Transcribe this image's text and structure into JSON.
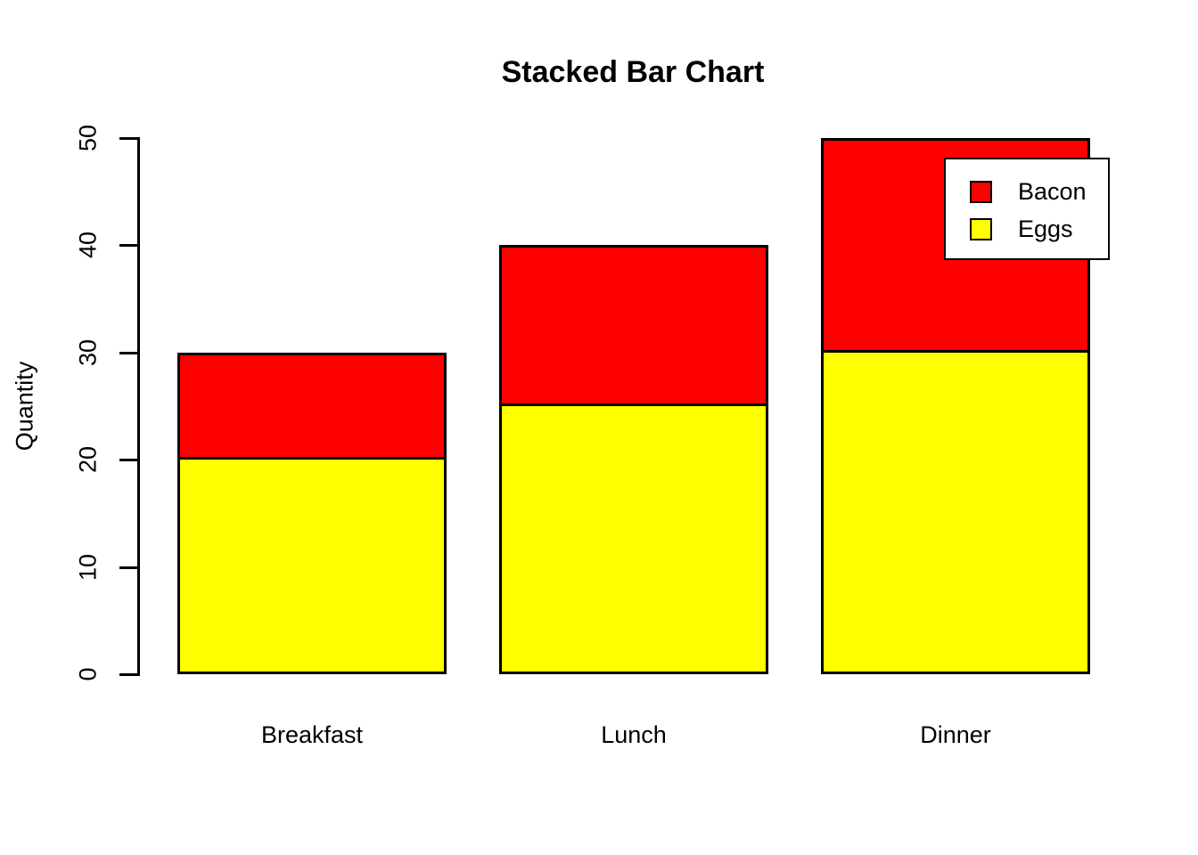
{
  "chart_data": {
    "type": "bar",
    "stacked": true,
    "title": "Stacked Bar Chart",
    "ylabel": "Quantity",
    "categories": [
      "Breakfast",
      "Lunch",
      "Dinner"
    ],
    "series": [
      {
        "name": "Bacon",
        "color": "#FF0000",
        "values": [
          10,
          15,
          20
        ]
      },
      {
        "name": "Eggs",
        "color": "#FFFF00",
        "values": [
          20,
          25,
          30
        ]
      }
    ],
    "stack_totals": [
      30,
      40,
      50
    ],
    "ylim": [
      0,
      50
    ],
    "yticks": [
      0,
      10,
      20,
      30,
      40,
      50
    ],
    "grid": false,
    "background": "#FFFFFF",
    "bar_border_color": "#000000",
    "legend": {
      "position": "top-right",
      "entries": [
        "Bacon",
        "Eggs"
      ]
    }
  }
}
